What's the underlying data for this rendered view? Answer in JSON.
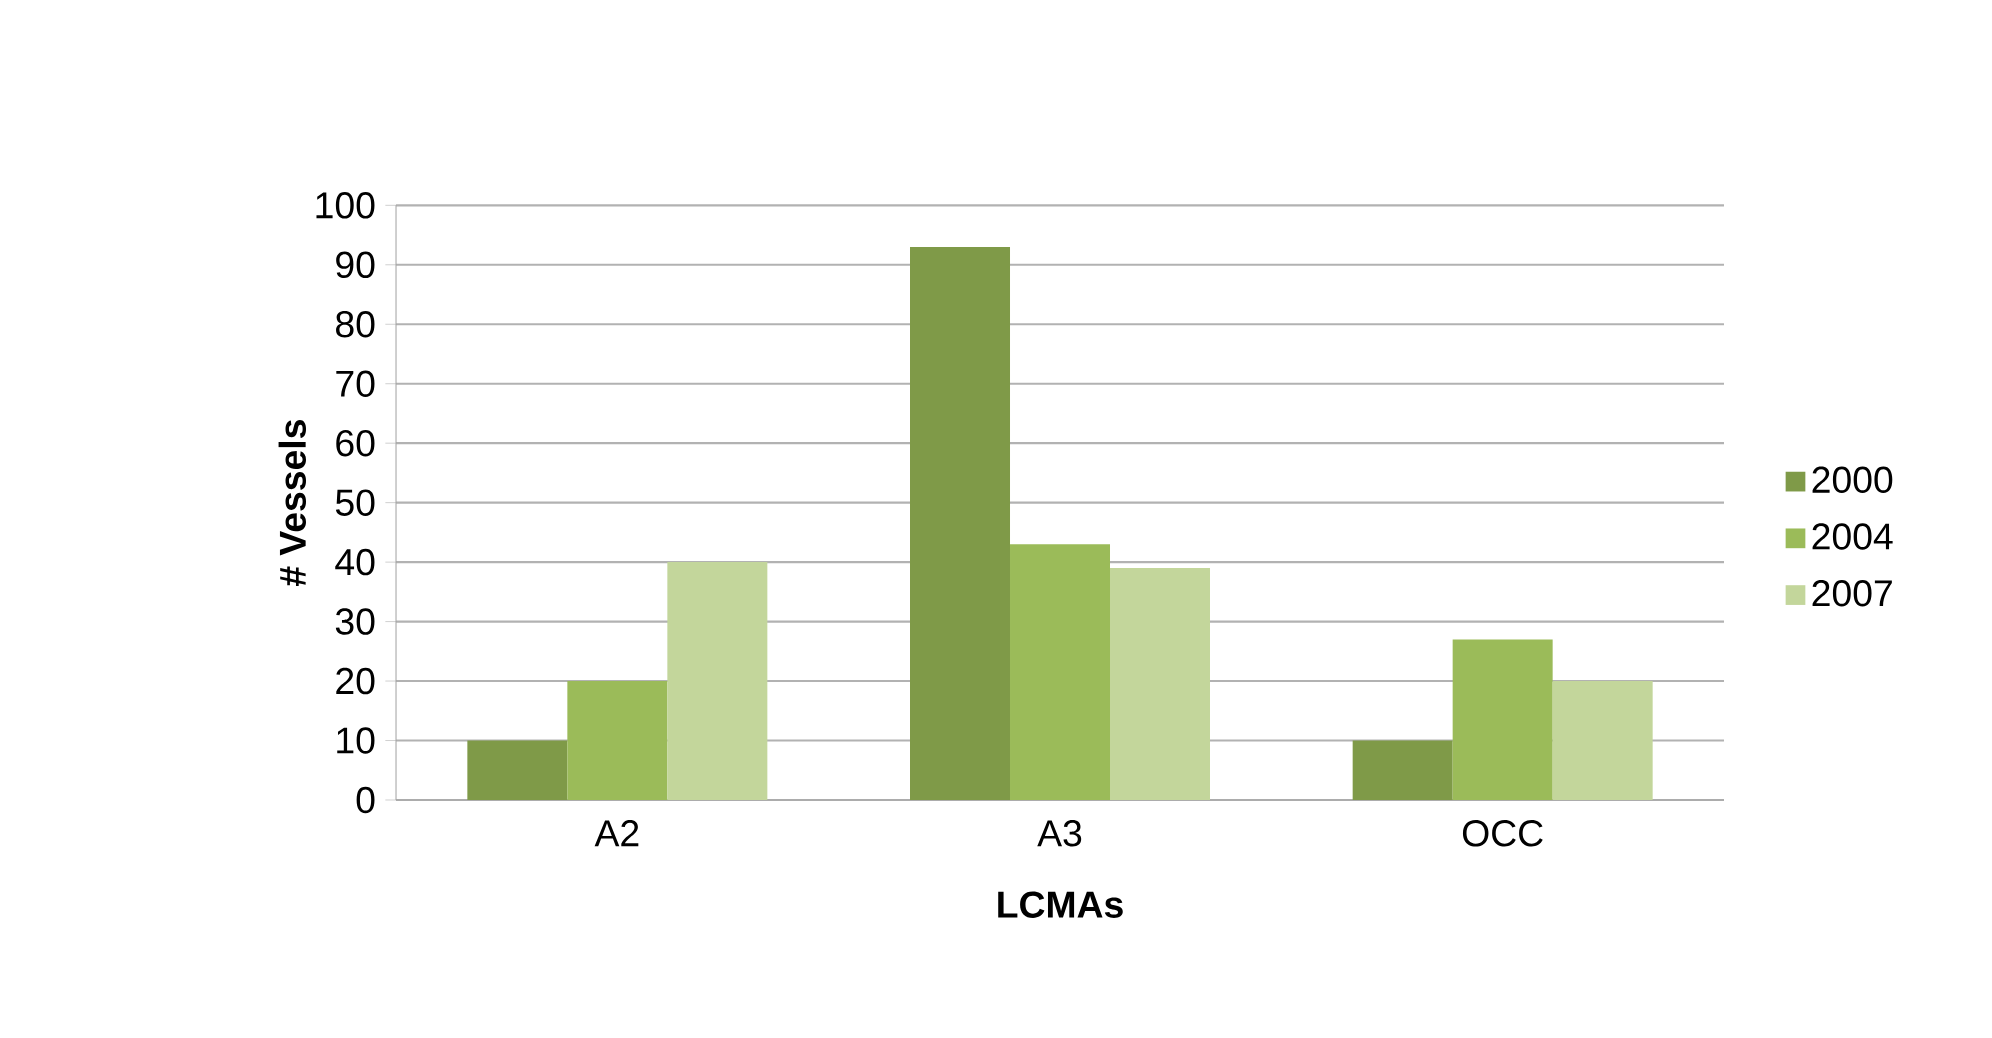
{
  "chart_data": {
    "type": "bar",
    "xlabel": "LCMAs",
    "ylabel": "# Vessels",
    "categories": [
      "A2",
      "A3",
      "OCC"
    ],
    "series": [
      {
        "name": "2000",
        "color": "#7f9a48",
        "values": [
          10,
          93,
          10
        ]
      },
      {
        "name": "2004",
        "color": "#9bbb59",
        "values": [
          20,
          43,
          27
        ]
      },
      {
        "name": "2007",
        "color": "#c3d69b",
        "values": [
          40,
          39,
          20
        ]
      }
    ],
    "ylim": [
      0,
      100
    ],
    "yticks": [
      0,
      10,
      20,
      30,
      40,
      50,
      60,
      70,
      80,
      90,
      100
    ],
    "grid": "y",
    "legend": "right"
  }
}
